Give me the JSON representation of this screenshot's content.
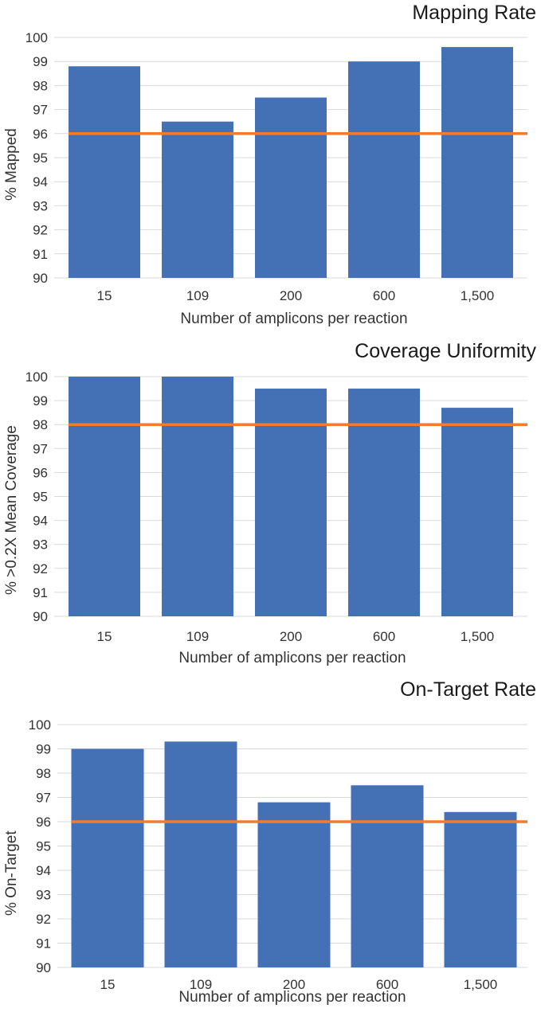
{
  "chart_data": [
    {
      "type": "bar",
      "title": "Mapping Rate",
      "xlabel": "Number of amplicons per reaction",
      "ylabel": "% Mapped",
      "categories": [
        "15",
        "109",
        "200",
        "600",
        "1,500"
      ],
      "values": [
        98.8,
        96.5,
        97.5,
        99.0,
        99.6
      ],
      "ylim": [
        90,
        100
      ],
      "yticks": [
        "90",
        "91",
        "92",
        "93",
        "94",
        "95",
        "96",
        "97",
        "98",
        "99",
        "100"
      ],
      "threshold": 96,
      "grid": true,
      "legend": "none",
      "bar_color": "#4470B5",
      "threshold_color": "#EE7D31"
    },
    {
      "type": "bar",
      "title": "Coverage Uniformity",
      "xlabel": "Number of amplicons per reaction",
      "ylabel": "% >0.2X Mean Coverage",
      "categories": [
        "15",
        "109",
        "200",
        "600",
        "1,500"
      ],
      "values": [
        100,
        100,
        99.5,
        99.5,
        98.7
      ],
      "ylim": [
        90,
        100
      ],
      "yticks": [
        "90",
        "91",
        "92",
        "93",
        "94",
        "95",
        "96",
        "97",
        "98",
        "99",
        "100"
      ],
      "threshold": 98,
      "grid": true,
      "legend": "none",
      "bar_color": "#4470B5",
      "threshold_color": "#EE7D31"
    },
    {
      "type": "bar",
      "title": "On-Target Rate",
      "xlabel": "Number of amplicons per reaction",
      "ylabel": "% On-Target",
      "categories": [
        "15",
        "109",
        "200",
        "600",
        "1,500"
      ],
      "values": [
        99.0,
        99.3,
        96.8,
        97.5,
        96.4
      ],
      "ylim": [
        90,
        100
      ],
      "yticks": [
        "90",
        "91",
        "92",
        "93",
        "94",
        "95",
        "96",
        "97",
        "98",
        "99",
        "100"
      ],
      "threshold": 96,
      "grid": true,
      "legend": "none",
      "bar_color": "#4470B5",
      "threshold_color": "#EE7D31"
    }
  ]
}
